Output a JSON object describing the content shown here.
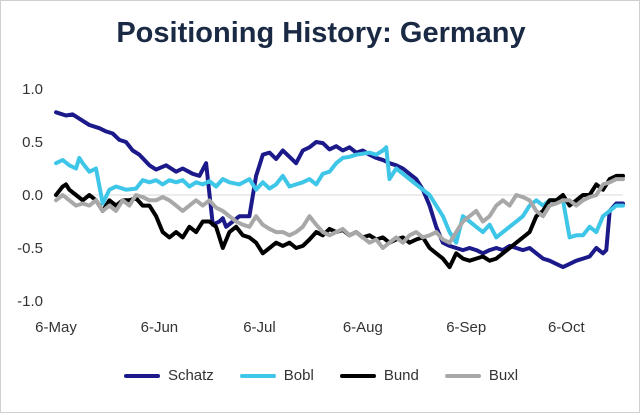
{
  "chart_data": {
    "type": "line",
    "title": "Positioning History: Germany",
    "xlabel": "",
    "ylabel": "",
    "ylim": [
      -1.0,
      1.0
    ],
    "yticks": [
      1.0,
      0.5,
      0.0,
      -0.5,
      -1.0
    ],
    "ytick_labels": [
      "1.0",
      "0.5",
      "0.0",
      "-0.5",
      "-1.0"
    ],
    "xlim": [
      0,
      170
    ],
    "xticks": [
      0,
      31,
      61,
      92,
      123,
      153
    ],
    "xtick_labels": [
      "6-May",
      "6-Jun",
      "6-Jul",
      "6-Aug",
      "6-Sep",
      "6-Oct"
    ],
    "grid": false,
    "legend_position": "bottom",
    "series": [
      {
        "name": "Schatz",
        "color": "#1c1a8a",
        "x": [
          0,
          3,
          5,
          8,
          10,
          13,
          15,
          17,
          19,
          21,
          23,
          25,
          28,
          30,
          33,
          36,
          38,
          41,
          43,
          45,
          47,
          49,
          50,
          51,
          53,
          55,
          58,
          60,
          61,
          62,
          64,
          66,
          68,
          70,
          72,
          74,
          76,
          78,
          80,
          82,
          84,
          86,
          88,
          90,
          92,
          94,
          96,
          98,
          100,
          102,
          104,
          106,
          108,
          110,
          112,
          114,
          116,
          118,
          120,
          122,
          124,
          126,
          128,
          130,
          132,
          134,
          136,
          138,
          140,
          142,
          144,
          146,
          148,
          150,
          152,
          154,
          156,
          158,
          160,
          162,
          164,
          165,
          166,
          168,
          170
        ],
        "y": [
          0.78,
          0.75,
          0.76,
          0.7,
          0.66,
          0.63,
          0.6,
          0.58,
          0.52,
          0.5,
          0.42,
          0.38,
          0.28,
          0.24,
          0.28,
          0.22,
          0.25,
          0.2,
          0.18,
          0.3,
          -0.28,
          -0.25,
          -0.22,
          -0.3,
          -0.25,
          -0.2,
          -0.2,
          0.18,
          0.28,
          0.38,
          0.4,
          0.34,
          0.42,
          0.36,
          0.3,
          0.42,
          0.45,
          0.5,
          0.49,
          0.43,
          0.46,
          0.42,
          0.45,
          0.4,
          0.42,
          0.38,
          0.35,
          0.33,
          0.3,
          0.28,
          0.25,
          0.2,
          0.15,
          0.05,
          -0.1,
          -0.3,
          -0.45,
          -0.48,
          -0.5,
          -0.52,
          -0.5,
          -0.52,
          -0.55,
          -0.52,
          -0.5,
          -0.52,
          -0.48,
          -0.5,
          -0.52,
          -0.5,
          -0.55,
          -0.6,
          -0.62,
          -0.65,
          -0.68,
          -0.65,
          -0.62,
          -0.6,
          -0.58,
          -0.5,
          -0.55,
          -0.52,
          -0.15,
          -0.08,
          -0.08
        ]
      },
      {
        "name": "Bobl",
        "color": "#3ec6e8",
        "x": [
          0,
          2,
          4,
          6,
          7,
          8,
          10,
          12,
          14,
          16,
          18,
          21,
          24,
          26,
          28,
          30,
          32,
          34,
          36,
          38,
          40,
          42,
          44,
          46,
          48,
          50,
          52,
          55,
          58,
          60,
          62,
          64,
          66,
          68,
          70,
          72,
          74,
          76,
          78,
          80,
          82,
          84,
          86,
          88,
          90,
          92,
          94,
          96,
          98,
          99,
          100,
          102,
          104,
          106,
          108,
          110,
          112,
          114,
          116,
          118,
          120,
          122,
          124,
          126,
          128,
          130,
          132,
          134,
          136,
          138,
          140,
          142,
          144,
          146,
          148,
          150,
          152,
          154,
          156,
          158,
          160,
          162,
          164,
          166,
          168,
          170
        ],
        "y": [
          0.3,
          0.33,
          0.28,
          0.25,
          0.35,
          0.3,
          0.22,
          0.25,
          -0.08,
          0.05,
          0.08,
          0.05,
          0.06,
          0.14,
          0.12,
          0.14,
          0.1,
          0.14,
          0.12,
          0.14,
          0.08,
          0.12,
          0.1,
          0.13,
          0.08,
          0.15,
          0.12,
          0.1,
          0.15,
          0.05,
          0.12,
          0.06,
          0.1,
          0.18,
          0.08,
          0.1,
          0.12,
          0.15,
          0.1,
          0.2,
          0.22,
          0.3,
          0.35,
          0.36,
          0.38,
          0.39,
          0.4,
          0.38,
          0.42,
          0.45,
          0.15,
          0.25,
          0.2,
          0.15,
          0.1,
          0.05,
          0.0,
          -0.1,
          -0.2,
          -0.35,
          -0.45,
          -0.2,
          -0.25,
          -0.3,
          -0.35,
          -0.28,
          -0.4,
          -0.35,
          -0.3,
          -0.25,
          -0.2,
          -0.1,
          -0.05,
          -0.1,
          -0.05,
          -0.05,
          -0.05,
          -0.4,
          -0.38,
          -0.38,
          -0.3,
          -0.35,
          -0.2,
          -0.15,
          -0.1,
          -0.1
        ]
      },
      {
        "name": "Bund",
        "color": "#000000",
        "x": [
          0,
          2,
          3,
          4,
          6,
          8,
          10,
          12,
          14,
          16,
          18,
          20,
          22,
          24,
          26,
          28,
          30,
          32,
          34,
          36,
          38,
          40,
          42,
          44,
          46,
          48,
          50,
          52,
          54,
          56,
          58,
          60,
          62,
          64,
          66,
          68,
          70,
          72,
          74,
          76,
          78,
          80,
          82,
          84,
          86,
          88,
          90,
          92,
          94,
          96,
          98,
          100,
          102,
          104,
          106,
          108,
          110,
          112,
          114,
          116,
          118,
          120,
          122,
          124,
          126,
          128,
          130,
          132,
          134,
          136,
          138,
          140,
          142,
          144,
          146,
          148,
          150,
          152,
          154,
          156,
          158,
          160,
          162,
          164,
          166,
          168,
          170
        ],
        "y": [
          0.0,
          0.08,
          0.1,
          0.05,
          0.0,
          -0.05,
          0.0,
          -0.05,
          -0.15,
          -0.05,
          -0.1,
          -0.05,
          -0.05,
          -0.03,
          -0.1,
          -0.1,
          -0.2,
          -0.35,
          -0.4,
          -0.35,
          -0.4,
          -0.3,
          -0.35,
          -0.25,
          -0.25,
          -0.3,
          -0.5,
          -0.35,
          -0.3,
          -0.38,
          -0.4,
          -0.45,
          -0.55,
          -0.5,
          -0.45,
          -0.48,
          -0.45,
          -0.5,
          -0.48,
          -0.42,
          -0.35,
          -0.38,
          -0.32,
          -0.35,
          -0.33,
          -0.38,
          -0.35,
          -0.4,
          -0.38,
          -0.42,
          -0.4,
          -0.45,
          -0.42,
          -0.4,
          -0.45,
          -0.42,
          -0.4,
          -0.5,
          -0.55,
          -0.6,
          -0.68,
          -0.55,
          -0.6,
          -0.62,
          -0.6,
          -0.58,
          -0.62,
          -0.6,
          -0.55,
          -0.5,
          -0.45,
          -0.4,
          -0.35,
          -0.2,
          -0.15,
          -0.05,
          -0.05,
          0.0,
          -0.1,
          -0.05,
          0.0,
          0.0,
          0.1,
          0.05,
          0.15,
          0.18,
          0.18
        ]
      },
      {
        "name": "Buxl",
        "color": "#a8a8a8",
        "x": [
          0,
          2,
          4,
          6,
          8,
          10,
          12,
          14,
          16,
          18,
          20,
          22,
          24,
          26,
          28,
          30,
          32,
          34,
          36,
          38,
          40,
          42,
          44,
          46,
          48,
          50,
          52,
          54,
          56,
          58,
          60,
          62,
          64,
          66,
          68,
          70,
          72,
          74,
          76,
          78,
          80,
          82,
          84,
          86,
          88,
          90,
          92,
          94,
          96,
          98,
          100,
          102,
          104,
          106,
          108,
          110,
          112,
          114,
          116,
          118,
          120,
          122,
          124,
          126,
          128,
          130,
          132,
          134,
          136,
          138,
          140,
          142,
          144,
          146,
          148,
          150,
          152,
          154,
          156,
          158,
          160,
          162,
          164,
          166,
          168,
          170
        ],
        "y": [
          -0.05,
          0.0,
          -0.05,
          -0.1,
          -0.08,
          -0.1,
          -0.05,
          -0.15,
          -0.1,
          -0.15,
          -0.05,
          -0.1,
          0.0,
          -0.02,
          -0.05,
          -0.05,
          -0.02,
          -0.05,
          -0.1,
          -0.15,
          -0.1,
          -0.05,
          -0.1,
          -0.05,
          -0.12,
          -0.15,
          -0.2,
          -0.25,
          -0.28,
          -0.3,
          -0.2,
          -0.28,
          -0.32,
          -0.35,
          -0.35,
          -0.38,
          -0.35,
          -0.3,
          -0.2,
          -0.28,
          -0.35,
          -0.38,
          -0.35,
          -0.32,
          -0.38,
          -0.35,
          -0.4,
          -0.45,
          -0.42,
          -0.5,
          -0.45,
          -0.4,
          -0.45,
          -0.38,
          -0.35,
          -0.4,
          -0.38,
          -0.35,
          -0.42,
          -0.45,
          -0.35,
          -0.25,
          -0.2,
          -0.15,
          -0.25,
          -0.2,
          -0.1,
          -0.05,
          -0.1,
          0.0,
          -0.02,
          -0.05,
          -0.15,
          -0.2,
          -0.1,
          -0.08,
          -0.05,
          -0.05,
          -0.1,
          -0.05,
          -0.02,
          0.0,
          0.1,
          0.12,
          0.15,
          0.15
        ]
      }
    ]
  }
}
